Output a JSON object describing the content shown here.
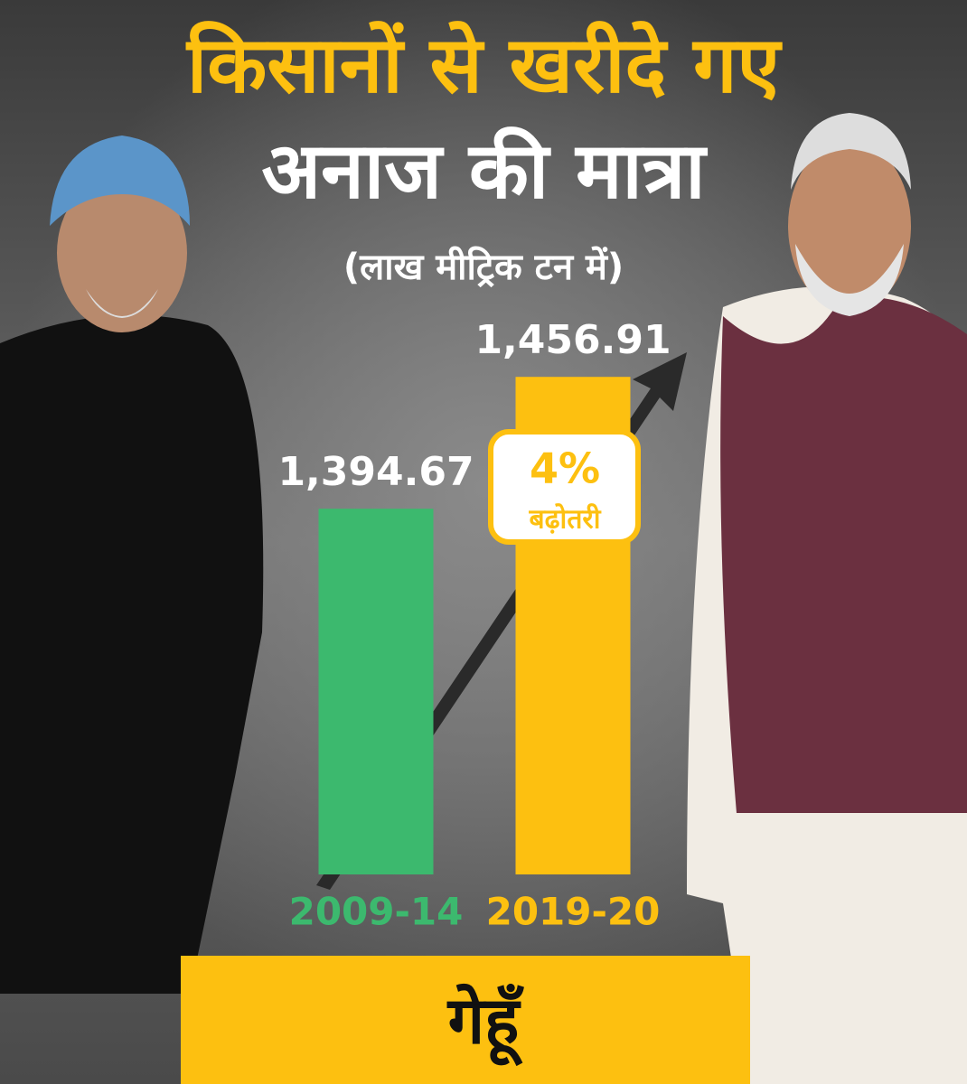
{
  "chart_data": {
    "type": "bar",
    "title": "किसानों से खरीदे गए",
    "subtitle": "अनाज की मात्रा",
    "unit_note": "(लाख मीट्रिक टन में)",
    "categories": [
      "2009-14",
      "2019-20"
    ],
    "values": [
      1394.67,
      1456.91
    ],
    "value_labels": [
      "1,394.67",
      "1,456.91"
    ],
    "colors": [
      "#3cb96e",
      "#fdc010"
    ],
    "ylim": [
      1222,
      1457
    ],
    "annotation": {
      "value": "4%",
      "label": "बढ़ोतरी"
    },
    "footer": "गेहूँ"
  }
}
